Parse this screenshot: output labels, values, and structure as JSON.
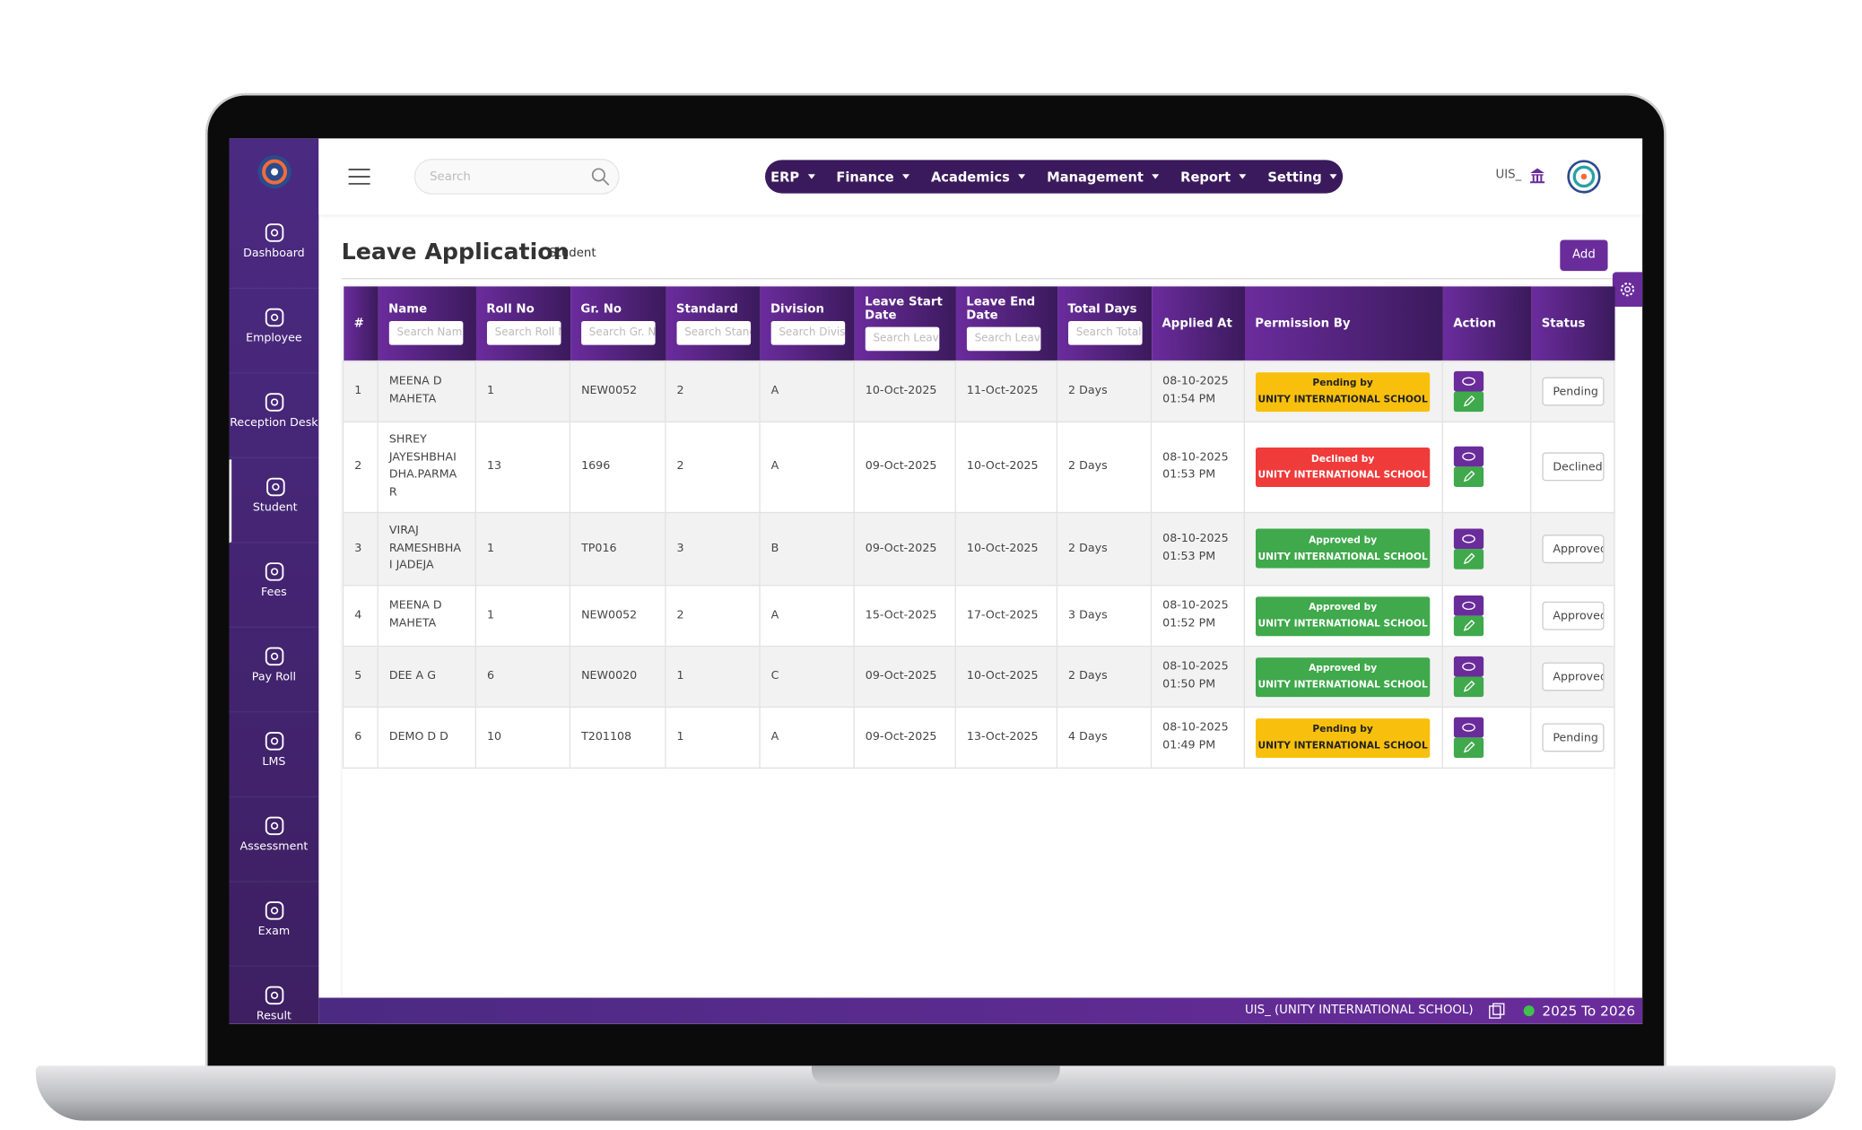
{
  "sidebar": {
    "items": [
      "Dashboard",
      "Employee",
      "Reception Desk",
      "Student",
      "Fees",
      "Pay Roll",
      "LMS",
      "Assessment",
      "Exam",
      "Result"
    ],
    "active": 3
  },
  "topbar": {
    "search_placeholder": "Search",
    "menu": [
      "ERP",
      "Finance",
      "Academics",
      "Management",
      "Report",
      "Setting"
    ],
    "school_code": "UIS_"
  },
  "page": {
    "title": "Leave Application",
    "subtitle": "Student",
    "add_button": "Add"
  },
  "table": {
    "headers": [
      "#",
      "Name",
      "Roll No",
      "Gr. No",
      "Standard",
      "Division",
      "Leave Start Date",
      "Leave End Date",
      "Total Days",
      "Applied At",
      "Permission By",
      "Action",
      "Status"
    ],
    "search_placeholders": [
      "Search Name",
      "Search Roll No",
      "Search Gr. No",
      "Search Standard",
      "Search Division",
      "Search Leave Start Date",
      "Search Leave End Date",
      "Search Total Days"
    ],
    "rows": [
      {
        "index": 1,
        "name": "MEENA D MAHETA",
        "roll_no": 1,
        "gr_no": "NEW0052",
        "standard": 2,
        "division": "A",
        "leave_start": "10-Oct-2025",
        "leave_end": "11-Oct-2025",
        "total_days": "2 Days",
        "applied_at": "08-10-2025 01:54 PM",
        "permission": "Pending by",
        "permission_school": "UNITY INTERNATIONAL SCHOOL",
        "permission_color": "#f8c00d",
        "status": "Pending"
      },
      {
        "index": 2,
        "name": "SHREY JAYESHBHAI DHA.PARMAR",
        "roll_no": 13,
        "gr_no": "1696",
        "standard": 2,
        "division": "A",
        "leave_start": "09-Oct-2025",
        "leave_end": "10-Oct-2025",
        "total_days": "2 Days",
        "applied_at": "08-10-2025 01:53 PM",
        "permission": "Declined by",
        "permission_school": "UNITY INTERNATIONAL SCHOOL",
        "permission_color": "#f03b3b",
        "status": "Declined"
      },
      {
        "index": 3,
        "name": "VIRAJ RAMESHBHAI JADEJA",
        "roll_no": 1,
        "gr_no": "TP016",
        "standard": 3,
        "division": "B",
        "leave_start": "09-Oct-2025",
        "leave_end": "10-Oct-2025",
        "total_days": "2 Days",
        "applied_at": "08-10-2025 01:53 PM",
        "permission": "Approved by",
        "permission_school": "UNITY INTERNATIONAL SCHOOL",
        "permission_color": "#3fa94b",
        "status": "Approved"
      },
      {
        "index": 4,
        "name": "MEENA D MAHETA",
        "roll_no": 1,
        "gr_no": "NEW0052",
        "standard": 2,
        "division": "A",
        "leave_start": "15-Oct-2025",
        "leave_end": "17-Oct-2025",
        "total_days": "3 Days",
        "applied_at": "08-10-2025 01:52 PM",
        "permission": "Approved by",
        "permission_school": "UNITY INTERNATIONAL SCHOOL",
        "permission_color": "#3fa94b",
        "status": "Approved"
      },
      {
        "index": 5,
        "name": "DEE A G",
        "roll_no": 6,
        "gr_no": "NEW0020",
        "standard": 1,
        "division": "C",
        "leave_start": "09-Oct-2025",
        "leave_end": "10-Oct-2025",
        "total_days": "2 Days",
        "applied_at": "08-10-2025 01:50 PM",
        "permission": "Approved by",
        "permission_school": "UNITY INTERNATIONAL SCHOOL",
        "permission_color": "#3fa94b",
        "status": "Approved"
      },
      {
        "index": 6,
        "name": "DEMO D D",
        "roll_no": 10,
        "gr_no": "T201108",
        "standard": 1,
        "division": "A",
        "leave_start": "09-Oct-2025",
        "leave_end": "13-Oct-2025",
        "total_days": "4 Days",
        "applied_at": "08-10-2025 01:49 PM",
        "permission": "Pending by",
        "permission_school": "UNITY INTERNATIONAL SCHOOL",
        "permission_color": "#f8c00d",
        "status": "Pending"
      }
    ]
  },
  "footer": {
    "school": "UIS_ (UNITY INTERNATIONAL SCHOOL)",
    "session": "2025 To 2026"
  }
}
